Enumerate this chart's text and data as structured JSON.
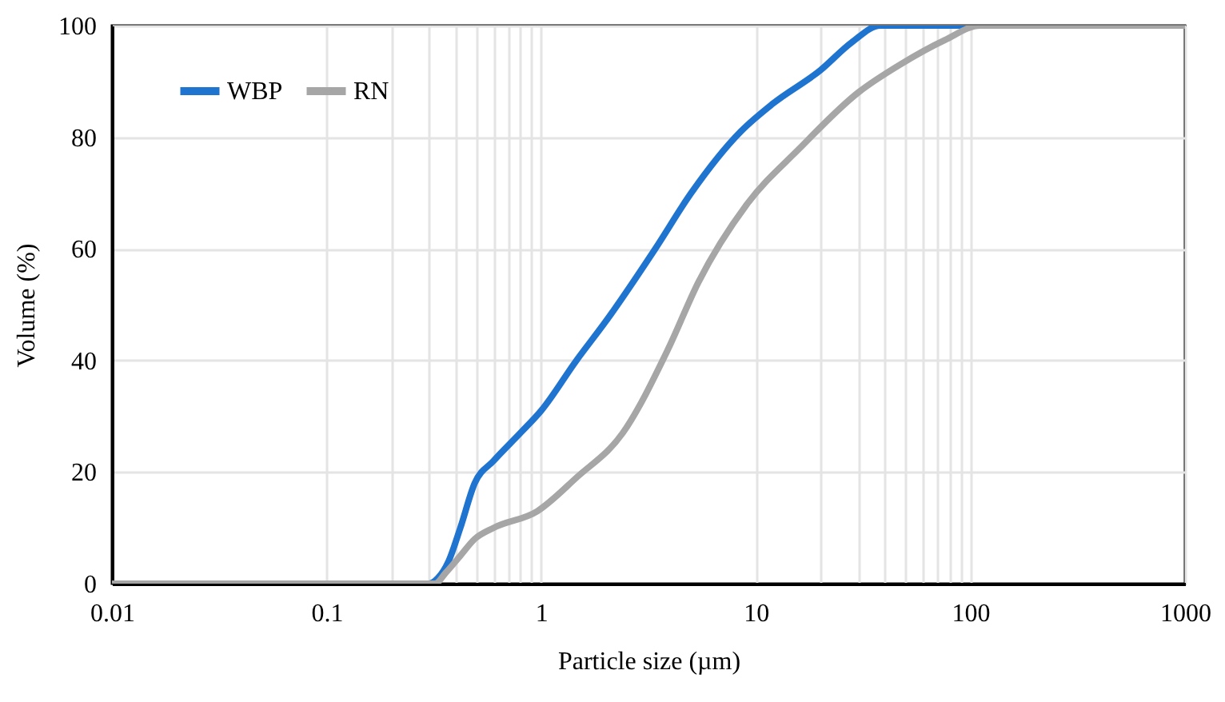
{
  "chart_data": {
    "type": "line",
    "xlabel": "Particle size (µm)",
    "ylabel": "Volume (%)",
    "log": "x",
    "xlim": [
      0.01,
      1000
    ],
    "ylim": [
      0,
      100
    ],
    "xticks": [
      0.01,
      0.1,
      {
        "value": 0.2,
        "label": null
      },
      {
        "value": 0.3,
        "label": null
      },
      {
        "value": 0.4,
        "label": null
      },
      {
        "value": 0.5,
        "label": null
      },
      {
        "value": 0.6,
        "label": null
      },
      {
        "value": 0.7,
        "label": null
      },
      {
        "value": 0.8,
        "label": null
      },
      {
        "value": 0.9,
        "label": null
      },
      1,
      10,
      {
        "value": 20,
        "label": null
      },
      {
        "value": 30,
        "label": null
      },
      {
        "value": 40,
        "label": null
      },
      {
        "value": 50,
        "label": null
      },
      {
        "value": 60,
        "label": null
      },
      {
        "value": 70,
        "label": null
      },
      {
        "value": 80,
        "label": null
      },
      {
        "value": 90,
        "label": null
      },
      100,
      1000
    ],
    "yticks": [
      0,
      20,
      40,
      60,
      80,
      100
    ],
    "grid": true,
    "legend": "top left",
    "marker": "none",
    "line_style": "solid",
    "series": [
      {
        "name": "WBP",
        "color": "#1f74cf",
        "x": [
          0.01,
          0.1,
          0.3,
          0.33,
          0.37,
          0.42,
          0.49,
          0.6,
          0.8,
          1,
          1.46,
          2,
          3.4,
          5,
          8.5,
          12,
          20,
          28,
          38,
          100,
          1000
        ],
        "values": [
          0,
          0,
          0,
          1,
          4,
          10,
          18,
          22,
          27,
          31,
          40,
          47,
          60,
          70,
          81,
          86,
          92,
          97,
          100,
          100,
          100
        ]
      },
      {
        "name": "RN",
        "color": "#a6a6a6",
        "x": [
          0.01,
          0.1,
          0.32,
          0.36,
          0.42,
          0.49,
          0.6,
          0.96,
          1.46,
          2.4,
          3.9,
          5.4,
          9.1,
          16,
          30,
          47,
          76,
          111,
          1000
        ],
        "values": [
          0,
          0,
          0,
          2,
          5,
          8,
          10,
          13,
          19,
          27,
          42,
          54,
          68,
          78,
          88,
          93,
          97.4,
          100,
          100
        ]
      }
    ]
  }
}
